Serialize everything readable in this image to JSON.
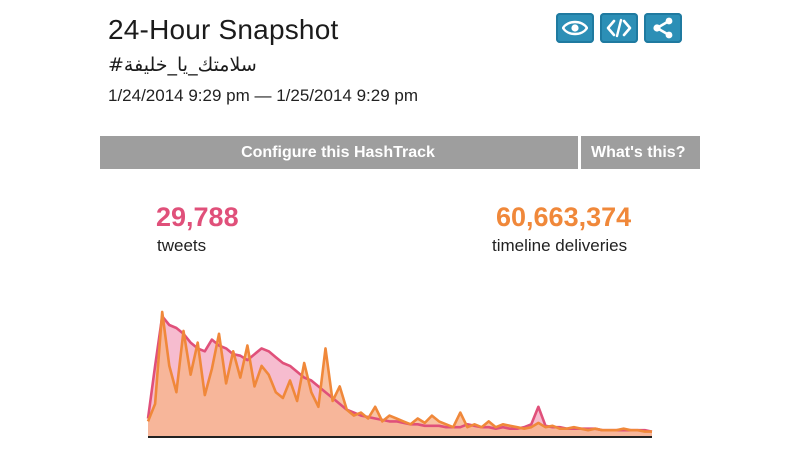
{
  "header": {
    "title": "24-Hour Snapshot",
    "hashtag": "سلامتك_يا_خليفة#",
    "date_range": "1/24/2014 9:29 pm — 1/25/2014 9:29 pm"
  },
  "toolbar": {
    "icons": [
      "eye-icon",
      "code-icon",
      "share-icon"
    ]
  },
  "nav": {
    "configure_label": "Configure this HashTrack",
    "whats_this_label": "What's this?"
  },
  "stats": {
    "tweets": {
      "value": "29,788",
      "label": "tweets",
      "color": "#e0507a"
    },
    "deliveries": {
      "value": "60,663,374",
      "label": "timeline deliveries",
      "color": "#f0883a"
    }
  },
  "colors": {
    "bar_bg": "#9e9e9e",
    "icon_bg": "#2c8fb6",
    "tweets_line": "#e0507a",
    "tweets_fill": "#f3a6bf",
    "deliveries_line": "#f0883a",
    "deliveries_fill": "#f7b48c"
  },
  "chart_data": {
    "type": "area",
    "ylim": [
      0,
      100
    ],
    "series": [
      {
        "color": "#e0507a",
        "values": [
          12,
          48,
          82,
          76,
          74,
          70,
          64,
          60,
          58,
          66,
          62,
          60,
          56,
          55,
          52,
          56,
          60,
          58,
          54,
          50,
          48,
          44,
          40,
          38,
          34,
          30,
          26,
          22,
          18,
          16,
          14,
          13,
          12,
          11,
          10,
          10,
          9,
          8,
          8,
          7,
          7,
          7,
          6,
          6,
          6,
          8,
          7,
          6,
          6,
          5,
          6,
          5,
          5,
          6,
          8,
          20,
          7,
          6,
          6,
          5,
          5,
          5,
          5,
          5,
          4,
          4,
          4,
          4,
          4,
          4,
          4,
          3
        ]
      },
      {
        "color": "#f0883a",
        "values": [
          10,
          22,
          85,
          48,
          30,
          72,
          42,
          64,
          28,
          46,
          70,
          36,
          58,
          40,
          62,
          34,
          48,
          42,
          30,
          26,
          38,
          24,
          50,
          30,
          20,
          60,
          24,
          34,
          18,
          14,
          16,
          12,
          20,
          10,
          14,
          12,
          10,
          8,
          12,
          9,
          14,
          10,
          8,
          6,
          16,
          6,
          8,
          6,
          10,
          6,
          8,
          7,
          6,
          5,
          6,
          9,
          6,
          7,
          5,
          5,
          6,
          5,
          4,
          5,
          4,
          4,
          4,
          5,
          4,
          4,
          3,
          3
        ]
      }
    ]
  }
}
